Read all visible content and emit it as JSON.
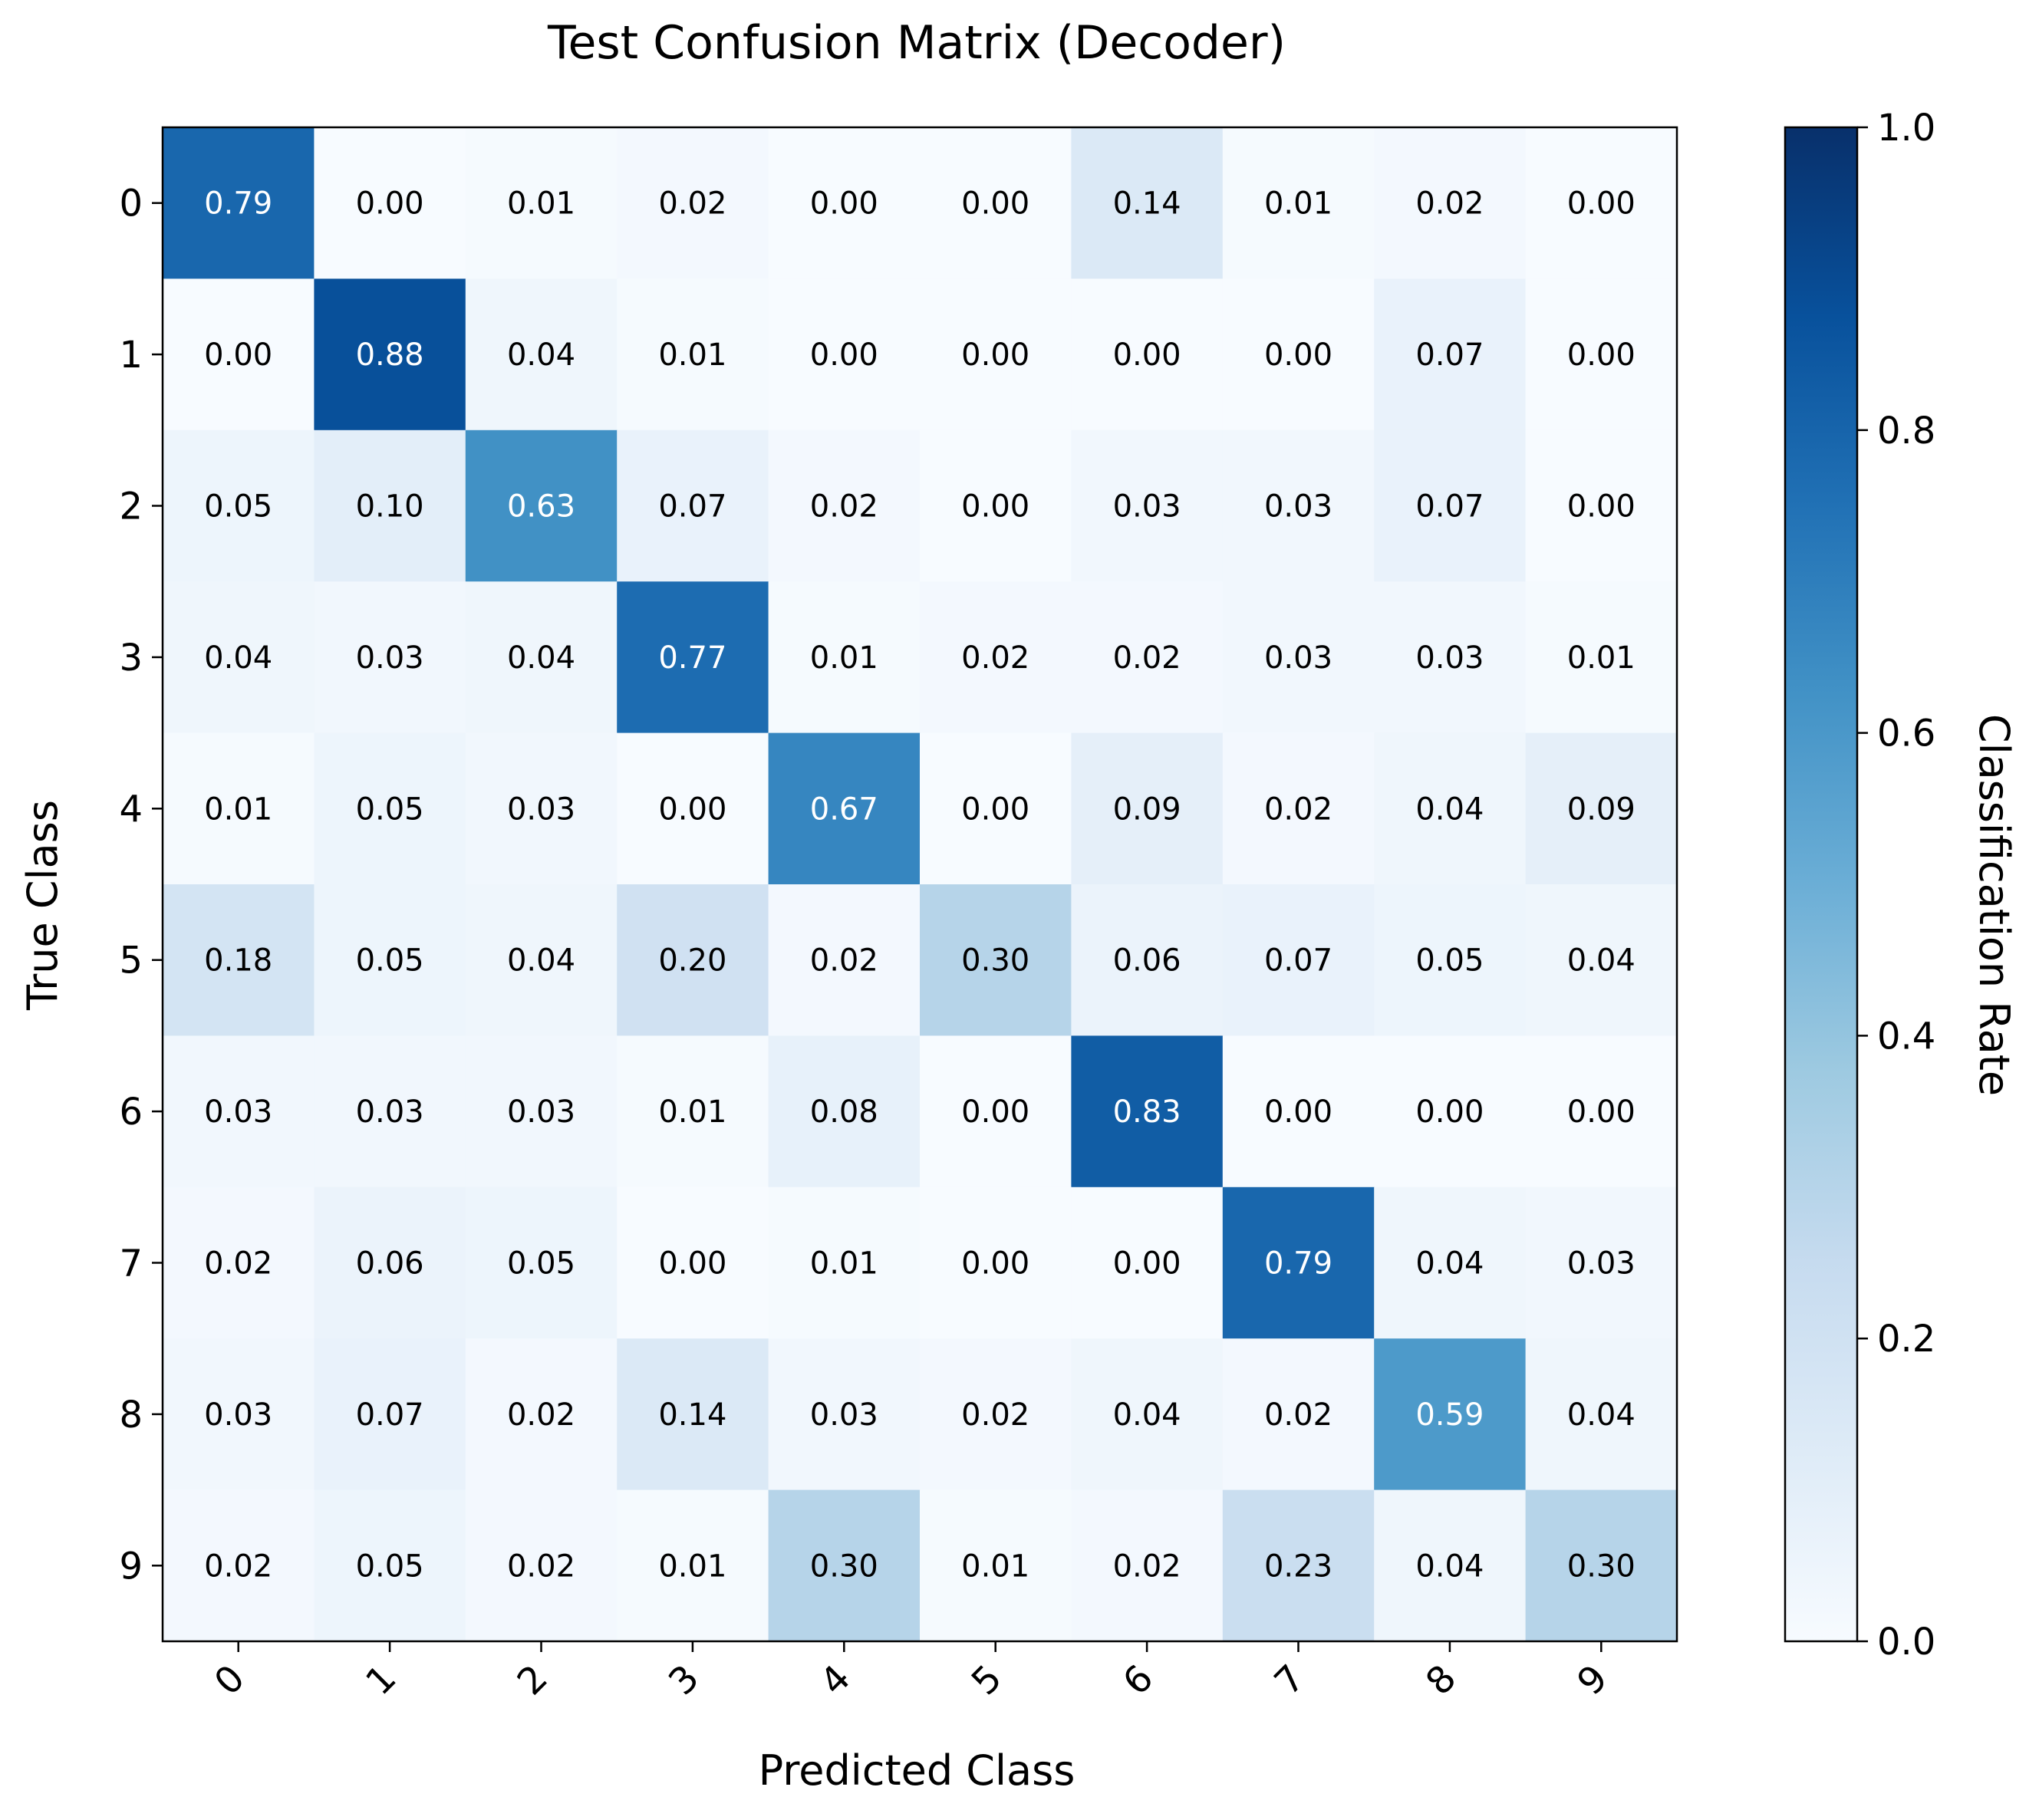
{
  "chart_data": {
    "type": "heatmap",
    "title": "Test Confusion Matrix (Decoder)",
    "xlabel": "Predicted Class",
    "ylabel": "True Class",
    "x_categories": [
      "0",
      "1",
      "2",
      "3",
      "4",
      "5",
      "6",
      "7",
      "8",
      "9"
    ],
    "y_categories": [
      "0",
      "1",
      "2",
      "3",
      "4",
      "5",
      "6",
      "7",
      "8",
      "9"
    ],
    "values": [
      [
        0.79,
        0.0,
        0.01,
        0.02,
        0.0,
        0.0,
        0.14,
        0.01,
        0.02,
        0.0
      ],
      [
        0.0,
        0.88,
        0.04,
        0.01,
        0.0,
        0.0,
        0.0,
        0.0,
        0.07,
        0.0
      ],
      [
        0.05,
        0.1,
        0.63,
        0.07,
        0.02,
        0.0,
        0.03,
        0.03,
        0.07,
        0.0
      ],
      [
        0.04,
        0.03,
        0.04,
        0.77,
        0.01,
        0.02,
        0.02,
        0.03,
        0.03,
        0.01
      ],
      [
        0.01,
        0.05,
        0.03,
        0.0,
        0.67,
        0.0,
        0.09,
        0.02,
        0.04,
        0.09
      ],
      [
        0.18,
        0.05,
        0.04,
        0.2,
        0.02,
        0.3,
        0.06,
        0.07,
        0.05,
        0.04
      ],
      [
        0.03,
        0.03,
        0.03,
        0.01,
        0.08,
        0.0,
        0.83,
        0.0,
        0.0,
        0.0
      ],
      [
        0.02,
        0.06,
        0.05,
        0.0,
        0.01,
        0.0,
        0.0,
        0.79,
        0.04,
        0.03
      ],
      [
        0.03,
        0.07,
        0.02,
        0.14,
        0.03,
        0.02,
        0.04,
        0.02,
        0.59,
        0.04
      ],
      [
        0.02,
        0.05,
        0.02,
        0.01,
        0.3,
        0.01,
        0.02,
        0.23,
        0.04,
        0.3
      ]
    ],
    "value_format": "0.00",
    "colormap": "Blues",
    "color_range": [
      0.0,
      1.0
    ],
    "colorbar": {
      "label": "Classification Rate",
      "ticks": [
        0.0,
        0.2,
        0.4,
        0.6,
        0.8,
        1.0
      ],
      "tick_labels": [
        "0.0",
        "0.2",
        "0.4",
        "0.6",
        "0.8",
        "1.0"
      ],
      "position": "right"
    },
    "x_tick_rotation_deg": 45,
    "grid": false,
    "text_colors": {
      "dark_cell": "#ffffff",
      "light_cell": "#000000"
    }
  }
}
